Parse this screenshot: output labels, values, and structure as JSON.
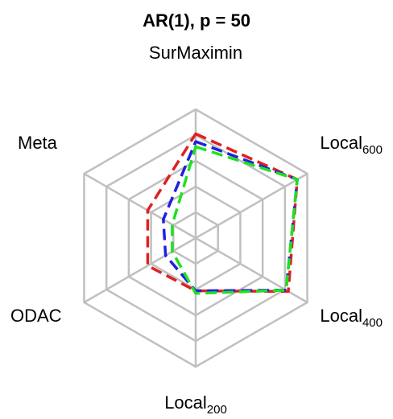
{
  "chart_data": {
    "type": "radar",
    "title": "AR(1), p = 50",
    "axes": [
      {
        "name": "SurMaximin",
        "base": "SurMaximin",
        "sub": ""
      },
      {
        "name": "Local600",
        "base": "Local",
        "sub": "600"
      },
      {
        "name": "Local400",
        "base": "Local",
        "sub": "400"
      },
      {
        "name": "Local200",
        "base": "Local",
        "sub": "200"
      },
      {
        "name": "ODAC",
        "base": "ODAC",
        "sub": ""
      },
      {
        "name": "Meta",
        "base": "Meta",
        "sub": ""
      }
    ],
    "range": [
      0,
      5
    ],
    "grid_levels": 5,
    "series": [
      {
        "color": "#e02020",
        "values": [
          4.05,
          4.55,
          4.15,
          2.05,
          2.15,
          2.15
        ]
      },
      {
        "color": "#2020e0",
        "values": [
          3.75,
          4.55,
          4.05,
          2.05,
          1.35,
          1.45
        ]
      },
      {
        "color": "#20e020",
        "values": [
          3.55,
          4.55,
          4.05,
          2.15,
          1.05,
          1.05
        ]
      }
    ]
  }
}
